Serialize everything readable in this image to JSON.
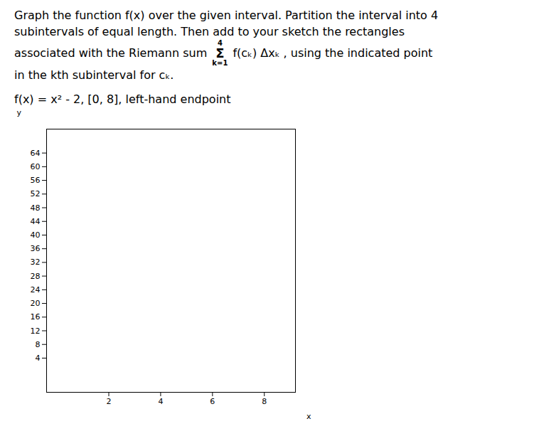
{
  "chart_data": {
    "type": "line",
    "annotations": [
      "Graph the function f(x) over the given interval. Partition the interval into 4",
      "subintervals of equal length. Then add to your sketch the rectangles",
      "associated with the Riemann sum ",
      "4",
      "Σ",
      "k=1",
      " f(cₖ) Δxₖ , using the indicated point",
      "in the kth subinterval for cₖ.",
      "f(x) = x² - 2, [0, 8], left-hand endpoint"
    ],
    "xlabel": "x",
    "ylabel": "y",
    "xlim": [
      -0.4,
      9.2
    ],
    "ylim": [
      -6,
      71
    ],
    "xticks": [
      2,
      4,
      6,
      8
    ],
    "yticks": [
      4,
      8,
      12,
      16,
      20,
      24,
      28,
      32,
      36,
      40,
      44,
      48,
      52,
      56,
      60,
      64
    ],
    "grid": false,
    "series": []
  }
}
